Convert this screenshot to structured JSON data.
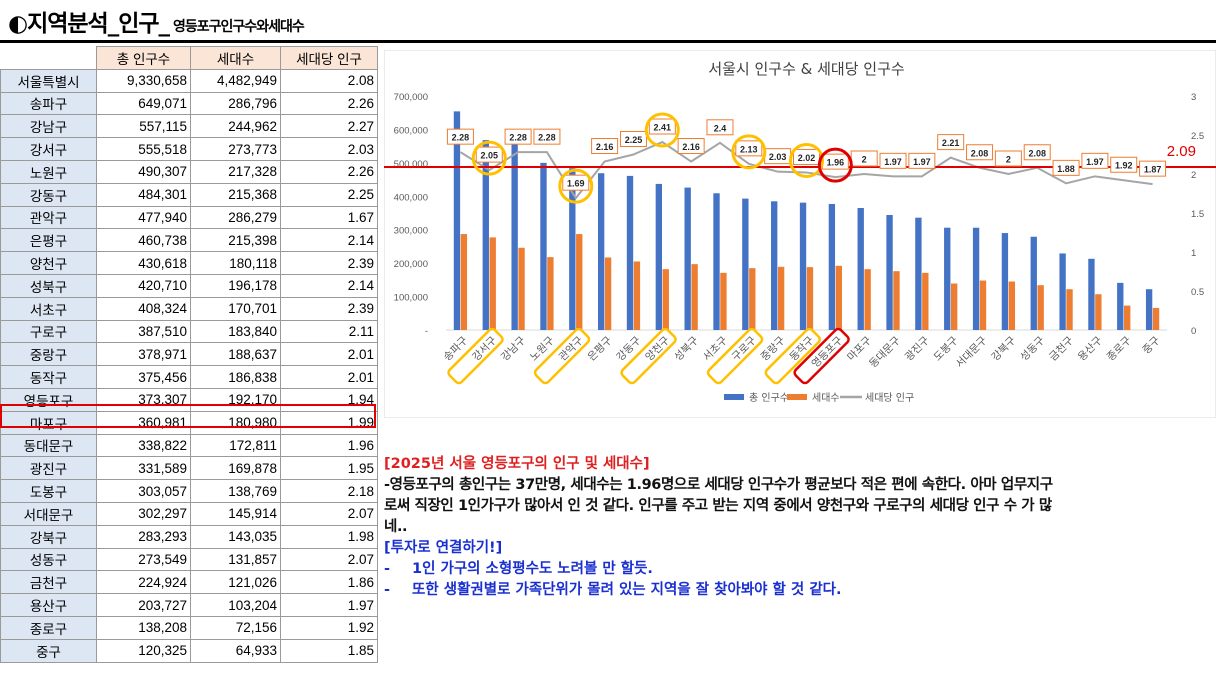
{
  "header": {
    "title": "◐지역분석_인구_",
    "subtitle": "영등포구인구수와세대수"
  },
  "table": {
    "headers": [
      "",
      "총 인구수",
      "세대수",
      "세대당 인구"
    ],
    "rows": [
      {
        "name": "서울특별시",
        "pop": "9,330,658",
        "hh": "4,482,949",
        "ratio": "2.08"
      },
      {
        "name": "송파구",
        "pop": "649,071",
        "hh": "286,796",
        "ratio": "2.26"
      },
      {
        "name": "강남구",
        "pop": "557,115",
        "hh": "244,962",
        "ratio": "2.27"
      },
      {
        "name": "강서구",
        "pop": "555,518",
        "hh": "273,773",
        "ratio": "2.03"
      },
      {
        "name": "노원구",
        "pop": "490,307",
        "hh": "217,328",
        "ratio": "2.26"
      },
      {
        "name": "강동구",
        "pop": "484,301",
        "hh": "215,368",
        "ratio": "2.25"
      },
      {
        "name": "관악구",
        "pop": "477,940",
        "hh": "286,279",
        "ratio": "1.67"
      },
      {
        "name": "은평구",
        "pop": "460,738",
        "hh": "215,398",
        "ratio": "2.14"
      },
      {
        "name": "양천구",
        "pop": "430,618",
        "hh": "180,118",
        "ratio": "2.39"
      },
      {
        "name": "성북구",
        "pop": "420,710",
        "hh": "196,178",
        "ratio": "2.14"
      },
      {
        "name": "서초구",
        "pop": "408,324",
        "hh": "170,701",
        "ratio": "2.39"
      },
      {
        "name": "구로구",
        "pop": "387,510",
        "hh": "183,840",
        "ratio": "2.11"
      },
      {
        "name": "중랑구",
        "pop": "378,971",
        "hh": "188,637",
        "ratio": "2.01"
      },
      {
        "name": "동작구",
        "pop": "375,456",
        "hh": "186,838",
        "ratio": "2.01"
      },
      {
        "name": "영등포구",
        "pop": "373,307",
        "hh": "192,170",
        "ratio": "1.94"
      },
      {
        "name": "마포구",
        "pop": "360,981",
        "hh": "180,980",
        "ratio": "1.99"
      },
      {
        "name": "동대문구",
        "pop": "338,822",
        "hh": "172,811",
        "ratio": "1.96"
      },
      {
        "name": "광진구",
        "pop": "331,589",
        "hh": "169,878",
        "ratio": "1.95"
      },
      {
        "name": "도봉구",
        "pop": "303,057",
        "hh": "138,769",
        "ratio": "2.18"
      },
      {
        "name": "서대문구",
        "pop": "302,297",
        "hh": "145,914",
        "ratio": "2.07"
      },
      {
        "name": "강북구",
        "pop": "283,293",
        "hh": "143,035",
        "ratio": "1.98"
      },
      {
        "name": "성동구",
        "pop": "273,549",
        "hh": "131,857",
        "ratio": "2.07"
      },
      {
        "name": "금천구",
        "pop": "224,924",
        "hh": "121,026",
        "ratio": "1.86"
      },
      {
        "name": "용산구",
        "pop": "203,727",
        "hh": "103,204",
        "ratio": "1.97"
      },
      {
        "name": "종로구",
        "pop": "138,208",
        "hh": "72,156",
        "ratio": "1.92"
      },
      {
        "name": "중구",
        "pop": "120,325",
        "hh": "64,933",
        "ratio": "1.85"
      }
    ],
    "highlight_row": "영등포구"
  },
  "chart_data": {
    "type": "bar",
    "title": "서울시 인구수 & 세대당 인구수",
    "categories": [
      "송파구",
      "강서구",
      "강남구",
      "노원구",
      "관악구",
      "은평구",
      "강동구",
      "양천구",
      "성북구",
      "서초구",
      "구로구",
      "중랑구",
      "동작구",
      "영등포구",
      "마포구",
      "동대문구",
      "광진구",
      "도봉구",
      "서대문구",
      "강북구",
      "성동구",
      "금천구",
      "용산구",
      "종로구",
      "중구"
    ],
    "series": [
      {
        "name": "총 인구수",
        "color": "#4472c4",
        "axis": "left",
        "values": [
          654000,
          568000,
          562000,
          500000,
          484000,
          469000,
          461000,
          437000,
          426000,
          409000,
          393000,
          385000,
          381000,
          377000,
          365000,
          344000,
          336000,
          306000,
          306000,
          290000,
          279000,
          229000,
          213000,
          141000,
          122000
        ]
      },
      {
        "name": "세대수",
        "color": "#ed7d31",
        "axis": "left",
        "values": [
          287000,
          277000,
          246000,
          218000,
          287000,
          217000,
          205000,
          182000,
          197000,
          171000,
          185000,
          189000,
          188000,
          192000,
          182000,
          176000,
          171000,
          139000,
          148000,
          145000,
          134000,
          122000,
          107000,
          73000,
          66000
        ]
      },
      {
        "name": "세대당 인구",
        "color": "#a5a5a5",
        "axis": "right",
        "values": [
          2.28,
          2.05,
          2.28,
          2.28,
          1.69,
          2.16,
          2.25,
          2.41,
          2.16,
          2.4,
          2.13,
          2.03,
          2.02,
          1.96,
          2,
          1.97,
          1.97,
          2.21,
          2.08,
          2,
          2.08,
          1.88,
          1.97,
          1.92,
          1.87
        ]
      }
    ],
    "ratio_labels": [
      "2.28",
      "2.05",
      "2.28",
      "2.28",
      "1.69",
      "2.16",
      "2.25",
      "2.41",
      "2.16",
      "2.4",
      "2.13",
      "2.03",
      "2.02",
      "1.96",
      "2",
      "1.97",
      "1.97",
      "2.21",
      "2.08",
      "2",
      "2.08",
      "1.88",
      "1.97",
      "1.92",
      "1.87"
    ],
    "left_axis": {
      "min": 0,
      "max": 700000,
      "ticks": [
        "-",
        "100,000",
        "200,000",
        "300,000",
        "400,000",
        "500,000",
        "600,000",
        "700,000"
      ]
    },
    "right_axis": {
      "min": 0,
      "max": 3,
      "ticks": [
        "0",
        "0.5",
        "1",
        "1.5",
        "2",
        "2.5",
        "3"
      ]
    },
    "reference_line": {
      "value": 2.09,
      "label": "2.09",
      "color": "#e00000"
    },
    "circled_yellow": [
      "강서구",
      "관악구",
      "양천구",
      "구로구",
      "동작구"
    ],
    "circled_red": [
      "영등포구"
    ],
    "legend": {
      "position": "bottom"
    },
    "grid": false
  },
  "notes": {
    "heading": "[2025년 서울 영등포구의 인구 및 세대수]",
    "body": [
      "-영등포구의 총인구는 37만명, 세대수는 1.96명으로 세대당 인구수가 평균보다 적은 편에 속한다. 아마 업무지구",
      "로써 직장인 1인가구가 많아서 인 것 같다. 인구를 주고 받는 지역 중에서 양천구와 구로구의 세대당 인구 수 가 많",
      "네.."
    ],
    "invest_heading": "[투자로 연결하기!]",
    "bullets": [
      {
        "dash": "-",
        "text": "1인 가구의 소형평수도 노려볼 만 할듯."
      },
      {
        "dash": "-",
        "text": "또한 생활권별로 가족단위가 몰려 있는 지역을 잘 찾아봐야 할 것 같다."
      }
    ]
  }
}
